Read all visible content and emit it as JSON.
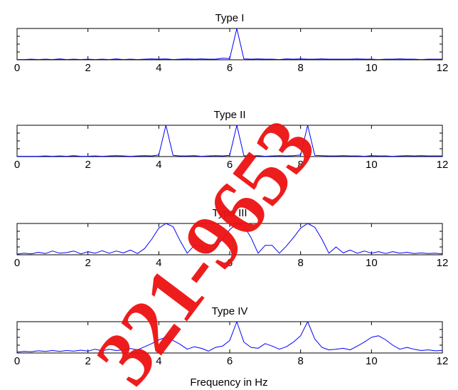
{
  "chart_data": [
    {
      "type": "line",
      "title": "Type I",
      "xlim": [
        0,
        12
      ],
      "ylim": [
        0,
        1
      ],
      "xticks": [
        "0",
        "2",
        "4",
        "6",
        "8",
        "10",
        "12"
      ],
      "grid": false,
      "series": [
        {
          "color": "#0000ff",
          "x": [
            0,
            0.2,
            0.4,
            0.6,
            0.8,
            1.0,
            1.2,
            1.4,
            1.6,
            1.8,
            2.0,
            2.2,
            2.4,
            2.6,
            2.8,
            3.0,
            3.2,
            3.4,
            3.6,
            3.8,
            4.0,
            4.2,
            4.4,
            4.6,
            4.8,
            5.0,
            5.2,
            5.4,
            5.6,
            5.8,
            6.0,
            6.2,
            6.4,
            6.6,
            6.8,
            7.0,
            7.2,
            7.4,
            7.6,
            7.8,
            8.0,
            8.2,
            8.4,
            8.6,
            8.8,
            9.0,
            9.2,
            9.4,
            9.6,
            9.8,
            10.0,
            10.2,
            10.4,
            10.6,
            10.8,
            11.0,
            11.2,
            11.4,
            11.6,
            11.8,
            12.0
          ],
          "y": [
            0.01,
            0.01,
            0.02,
            0.01,
            0.02,
            0.01,
            0.03,
            0.01,
            0.02,
            0.01,
            0.02,
            0.01,
            0.02,
            0.01,
            0.03,
            0.01,
            0.02,
            0.01,
            0.02,
            0.03,
            0.02,
            0.03,
            0.01,
            0.02,
            0.03,
            0.02,
            0.03,
            0.02,
            0.02,
            0.05,
            0.04,
            1.0,
            0.03,
            0.02,
            0.03,
            0.02,
            0.02,
            0.01,
            0.03,
            0.02,
            0.03,
            0.02,
            0.02,
            0.03,
            0.02,
            0.02,
            0.02,
            0.02,
            0.03,
            0.02,
            0.02,
            0.01,
            0.02,
            0.02,
            0.03,
            0.02,
            0.02,
            0.01,
            0.02,
            0.02,
            0.02
          ]
        }
      ]
    },
    {
      "type": "line",
      "title": "Type II",
      "xlim": [
        0,
        12
      ],
      "ylim": [
        0,
        1
      ],
      "xticks": [
        "0",
        "2",
        "4",
        "6",
        "8",
        "10",
        "12"
      ],
      "grid": false,
      "series": [
        {
          "color": "#0000ff",
          "x": [
            0,
            0.2,
            0.4,
            0.6,
            0.8,
            1.0,
            1.2,
            1.4,
            1.6,
            1.8,
            2.0,
            2.2,
            2.4,
            2.6,
            2.8,
            3.0,
            3.2,
            3.4,
            3.6,
            3.8,
            4.0,
            4.2,
            4.4,
            4.6,
            4.8,
            5.0,
            5.2,
            5.4,
            5.6,
            5.8,
            6.0,
            6.2,
            6.4,
            6.6,
            6.8,
            7.0,
            7.2,
            7.4,
            7.6,
            7.8,
            8.0,
            8.2,
            8.4,
            8.6,
            8.8,
            9.0,
            9.2,
            9.4,
            9.6,
            9.8,
            10.0,
            10.2,
            10.4,
            10.6,
            10.8,
            11.0,
            11.2,
            11.4,
            11.6,
            11.8,
            12.0
          ],
          "y": [
            0.01,
            0.01,
            0.01,
            0.01,
            0.02,
            0.01,
            0.02,
            0.01,
            0.03,
            0.01,
            0.01,
            0.02,
            0.01,
            0.02,
            0.03,
            0.02,
            0.01,
            0.02,
            0.03,
            0.02,
            0.05,
            1.0,
            0.04,
            0.02,
            0.02,
            0.03,
            0.01,
            0.02,
            0.03,
            0.02,
            0.04,
            1.0,
            0.03,
            0.02,
            0.03,
            0.01,
            0.02,
            0.03,
            0.02,
            0.03,
            0.05,
            1.0,
            0.04,
            0.03,
            0.02,
            0.02,
            0.03,
            0.02,
            0.02,
            0.01,
            0.03,
            0.02,
            0.02,
            0.01,
            0.02,
            0.03,
            0.02,
            0.03,
            0.02,
            0.02,
            0.02
          ]
        }
      ]
    },
    {
      "type": "line",
      "title": "Type III",
      "xlim": [
        0,
        12
      ],
      "ylim": [
        0,
        1
      ],
      "xticks": [
        "0",
        "2",
        "4",
        "6",
        "8",
        "10",
        "12"
      ],
      "grid": false,
      "series": [
        {
          "color": "#0000ff",
          "x": [
            0,
            0.2,
            0.4,
            0.6,
            0.8,
            1.0,
            1.2,
            1.4,
            1.6,
            1.8,
            2.0,
            2.2,
            2.4,
            2.6,
            2.8,
            3.0,
            3.2,
            3.4,
            3.6,
            3.8,
            4.0,
            4.2,
            4.4,
            4.6,
            4.8,
            5.0,
            5.2,
            5.4,
            5.6,
            5.8,
            6.0,
            6.2,
            6.4,
            6.6,
            6.8,
            7.0,
            7.2,
            7.4,
            7.6,
            7.8,
            8.0,
            8.2,
            8.4,
            8.6,
            8.8,
            9.0,
            9.2,
            9.4,
            9.6,
            9.8,
            10.0,
            10.2,
            10.4,
            10.6,
            10.8,
            11.0,
            11.2,
            11.4,
            11.6,
            11.8,
            12.0
          ],
          "y": [
            0.02,
            0.05,
            0.03,
            0.08,
            0.04,
            0.12,
            0.05,
            0.07,
            0.12,
            0.03,
            0.1,
            0.05,
            0.13,
            0.05,
            0.12,
            0.06,
            0.15,
            0.04,
            0.2,
            0.5,
            0.85,
            1.0,
            0.9,
            0.45,
            0.05,
            0.3,
            0.28,
            0.05,
            0.25,
            0.5,
            0.8,
            1.0,
            0.92,
            0.55,
            0.05,
            0.3,
            0.3,
            0.05,
            0.28,
            0.55,
            0.85,
            1.0,
            0.88,
            0.5,
            0.05,
            0.25,
            0.06,
            0.15,
            0.05,
            0.12,
            0.05,
            0.1,
            0.04,
            0.1,
            0.05,
            0.08,
            0.04,
            0.06,
            0.04,
            0.05,
            0.03
          ]
        }
      ]
    },
    {
      "type": "line",
      "title": "Type IV",
      "xlabel": "Frequency in Hz",
      "xlim": [
        0,
        12
      ],
      "ylim": [
        0,
        1
      ],
      "xticks": [
        "0",
        "2",
        "4",
        "6",
        "8",
        "10",
        "12"
      ],
      "grid": false,
      "series": [
        {
          "color": "#0000ff",
          "x": [
            0,
            0.2,
            0.4,
            0.6,
            0.8,
            1.0,
            1.2,
            1.4,
            1.6,
            1.8,
            2.0,
            2.2,
            2.4,
            2.6,
            2.8,
            3.0,
            3.2,
            3.4,
            3.6,
            3.8,
            4.0,
            4.2,
            4.4,
            4.6,
            4.8,
            5.0,
            5.2,
            5.4,
            5.6,
            5.8,
            6.0,
            6.2,
            6.4,
            6.6,
            6.8,
            7.0,
            7.2,
            7.4,
            7.6,
            7.8,
            8.0,
            8.2,
            8.4,
            8.6,
            8.8,
            9.0,
            9.2,
            9.4,
            9.6,
            9.8,
            10.0,
            10.2,
            10.4,
            10.6,
            10.8,
            11.0,
            11.2,
            11.4,
            11.6,
            11.8,
            12.0
          ],
          "y": [
            0.03,
            0.05,
            0.04,
            0.07,
            0.05,
            0.08,
            0.05,
            0.08,
            0.06,
            0.09,
            0.06,
            0.12,
            0.07,
            0.12,
            0.08,
            0.1,
            0.14,
            0.1,
            0.2,
            0.3,
            0.42,
            0.5,
            0.4,
            0.28,
            0.12,
            0.2,
            0.15,
            0.06,
            0.18,
            0.22,
            0.4,
            1.0,
            0.35,
            0.18,
            0.15,
            0.3,
            0.22,
            0.12,
            0.2,
            0.35,
            0.55,
            1.0,
            0.45,
            0.18,
            0.1,
            0.12,
            0.15,
            0.1,
            0.22,
            0.35,
            0.5,
            0.55,
            0.42,
            0.25,
            0.12,
            0.18,
            0.12,
            0.08,
            0.1,
            0.07,
            0.08
          ]
        }
      ]
    }
  ],
  "watermark": {
    "text": "321-9653",
    "color": "#ee1111"
  }
}
